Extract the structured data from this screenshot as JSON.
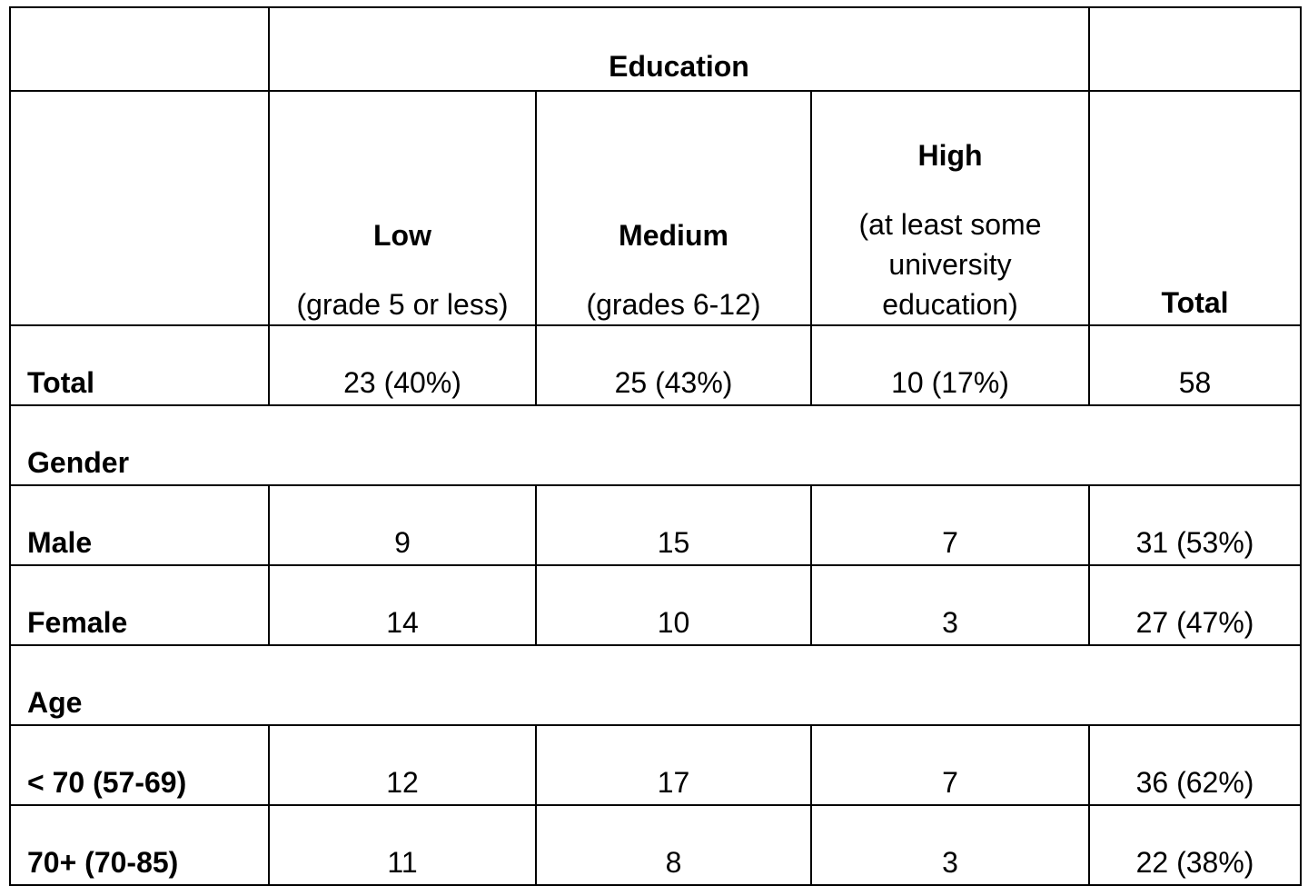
{
  "table": {
    "super_header": "Education",
    "columns": [
      {
        "title": "Low",
        "subtitle": "(grade 5 or less)"
      },
      {
        "title": "Medium",
        "subtitle": "(grades 6-12)"
      },
      {
        "title": "High",
        "subtitle": "(at least some university education)"
      },
      {
        "title": "Total",
        "subtitle": ""
      }
    ],
    "total_row": {
      "label": "Total",
      "values": [
        "23 (40%)",
        "25 (43%)",
        "10 (17%)",
        "58"
      ]
    },
    "sections": [
      {
        "label": "Gender",
        "rows": [
          {
            "label": "Male",
            "values": [
              "9",
              "15",
              "7",
              "31 (53%)"
            ]
          },
          {
            "label": "Female",
            "values": [
              "14",
              "10",
              "3",
              "27 (47%)"
            ]
          }
        ]
      },
      {
        "label": "Age",
        "rows": [
          {
            "label": "< 70 (57-69)",
            "values": [
              "12",
              "17",
              "7",
              "36 (62%)"
            ]
          },
          {
            "label": "70+ (70-85)",
            "values": [
              "11",
              "8",
              "3",
              "22 (38%)"
            ]
          }
        ]
      }
    ]
  }
}
